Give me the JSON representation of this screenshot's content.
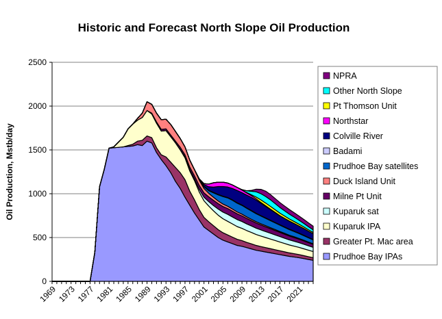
{
  "chart_data": {
    "type": "area",
    "stacked": true,
    "title": "Historic and Forecast North Slope Oil Production",
    "xlabel": "",
    "ylabel": "Oil Production, Mstb/day",
    "ylim": [
      0,
      2500
    ],
    "yticks": [
      "0",
      "500",
      "1000",
      "1500",
      "2000",
      "2500"
    ],
    "xlim": [
      1969,
      2024
    ],
    "xticks": [
      "1969",
      "1973",
      "1977",
      "1981",
      "1985",
      "1989",
      "1993",
      "1997",
      "2001",
      "2005",
      "2009",
      "2013",
      "2017",
      "2021"
    ],
    "grid": true,
    "legend_position": "right",
    "x": [
      1969,
      1970,
      1971,
      1972,
      1973,
      1974,
      1975,
      1976,
      1977,
      1978,
      1979,
      1980,
      1981,
      1982,
      1983,
      1984,
      1985,
      1986,
      1987,
      1988,
      1989,
      1990,
      1991,
      1992,
      1993,
      1994,
      1995,
      1996,
      1997,
      1998,
      1999,
      2000,
      2001,
      2002,
      2003,
      2004,
      2005,
      2006,
      2007,
      2008,
      2009,
      2010,
      2011,
      2012,
      2013,
      2014,
      2015,
      2016,
      2017,
      2018,
      2019,
      2020,
      2021,
      2022,
      2023,
      2024
    ],
    "series": [
      {
        "name": "Prudhoe Bay IPAs",
        "color": "#9999FF",
        "values": [
          0,
          0,
          0,
          0,
          0,
          0,
          0,
          0,
          0,
          330,
          1080,
          1280,
          1520,
          1525,
          1530,
          1535,
          1540,
          1545,
          1560,
          1550,
          1600,
          1580,
          1470,
          1390,
          1320,
          1240,
          1140,
          1060,
          960,
          870,
          780,
          700,
          620,
          580,
          540,
          500,
          470,
          450,
          430,
          410,
          400,
          385,
          370,
          355,
          345,
          335,
          325,
          315,
          305,
          295,
          285,
          278,
          270,
          260,
          250,
          240
        ]
      },
      {
        "name": "Greater Pt. Mac area",
        "color": "#993366",
        "values": [
          0,
          0,
          0,
          0,
          0,
          0,
          0,
          0,
          0,
          0,
          0,
          0,
          0,
          0,
          0,
          0,
          10,
          20,
          40,
          60,
          60,
          60,
          55,
          55,
          100,
          120,
          160,
          180,
          200,
          160,
          150,
          120,
          110,
          100,
          95,
          90,
          85,
          80,
          75,
          70,
          65,
          60,
          58,
          55,
          52,
          50,
          48,
          46,
          44,
          42,
          40,
          38,
          36,
          34,
          32,
          30
        ]
      },
      {
        "name": "Kuparuk IPA",
        "color": "#FFFFCC",
        "values": [
          0,
          0,
          0,
          0,
          0,
          0,
          0,
          0,
          0,
          0,
          0,
          0,
          0,
          10,
          60,
          110,
          190,
          230,
          240,
          260,
          290,
          270,
          280,
          270,
          300,
          290,
          280,
          260,
          250,
          230,
          220,
          200,
          190,
          180,
          170,
          165,
          160,
          155,
          150,
          145,
          140,
          135,
          130,
          125,
          120,
          115,
          110,
          105,
          100,
          95,
          90,
          86,
          82,
          78,
          74,
          70
        ]
      },
      {
        "name": "Kuparuk sat",
        "color": "#CCFFFF",
        "values": [
          0,
          0,
          0,
          0,
          0,
          0,
          0,
          0,
          0,
          0,
          0,
          0,
          0,
          0,
          0,
          0,
          0,
          0,
          0,
          0,
          0,
          0,
          0,
          0,
          0,
          0,
          0,
          5,
          10,
          15,
          20,
          30,
          40,
          50,
          60,
          70,
          75,
          80,
          80,
          80,
          78,
          76,
          74,
          72,
          70,
          68,
          66,
          64,
          62,
          60,
          58,
          56,
          54,
          52,
          50,
          48
        ]
      },
      {
        "name": "Milne Pt Unit",
        "color": "#660066",
        "values": [
          0,
          0,
          0,
          0,
          0,
          0,
          0,
          0,
          0,
          0,
          0,
          0,
          0,
          0,
          0,
          0,
          0,
          0,
          0,
          0,
          0,
          10,
          15,
          20,
          20,
          20,
          20,
          25,
          25,
          30,
          35,
          45,
          50,
          55,
          60,
          62,
          64,
          66,
          66,
          65,
          64,
          62,
          60,
          58,
          56,
          54,
          52,
          50,
          48,
          46,
          44,
          42,
          40,
          38,
          36,
          34
        ]
      },
      {
        "name": "Duck Island Unit",
        "color": "#FF8080",
        "values": [
          0,
          0,
          0,
          0,
          0,
          0,
          0,
          0,
          0,
          0,
          0,
          0,
          0,
          0,
          0,
          0,
          0,
          0,
          20,
          50,
          100,
          100,
          100,
          110,
          110,
          120,
          110,
          100,
          90,
          80,
          70,
          60,
          50,
          40,
          35,
          30,
          28,
          26,
          24,
          22,
          20,
          18,
          16,
          15,
          14,
          13,
          12,
          11,
          10,
          10,
          9,
          9,
          8,
          8,
          7,
          7
        ]
      },
      {
        "name": "Prudhoe Bay satellites",
        "color": "#0066CC",
        "values": [
          0,
          0,
          0,
          0,
          0,
          0,
          0,
          0,
          0,
          0,
          0,
          0,
          0,
          0,
          0,
          0,
          0,
          0,
          0,
          0,
          0,
          0,
          0,
          0,
          0,
          0,
          0,
          0,
          0,
          0,
          0,
          10,
          20,
          30,
          50,
          70,
          85,
          95,
          100,
          100,
          100,
          98,
          95,
          92,
          88,
          84,
          80,
          76,
          72,
          68,
          64,
          60,
          56,
          52,
          48,
          44
        ]
      },
      {
        "name": "Badami",
        "color": "#CCCCFF",
        "values": [
          0,
          0,
          0,
          0,
          0,
          0,
          0,
          0,
          0,
          0,
          0,
          0,
          0,
          0,
          0,
          0,
          0,
          0,
          0,
          0,
          0,
          0,
          0,
          0,
          0,
          0,
          0,
          0,
          0,
          0,
          0,
          5,
          5,
          5,
          5,
          5,
          5,
          5,
          5,
          5,
          5,
          5,
          5,
          5,
          5,
          5,
          5,
          5,
          5,
          5,
          5,
          5,
          5,
          5,
          5,
          5
        ]
      },
      {
        "name": "Colville River",
        "color": "#000080",
        "values": [
          0,
          0,
          0,
          0,
          0,
          0,
          0,
          0,
          0,
          0,
          0,
          0,
          0,
          0,
          0,
          0,
          0,
          0,
          0,
          0,
          0,
          0,
          0,
          0,
          0,
          0,
          0,
          0,
          0,
          0,
          0,
          0,
          20,
          40,
          60,
          90,
          110,
          120,
          130,
          140,
          140,
          145,
          150,
          150,
          140,
          130,
          120,
          110,
          100,
          95,
          90,
          85,
          80,
          75,
          70,
          65
        ]
      },
      {
        "name": "Northstar",
        "color": "#FF00FF",
        "values": [
          0,
          0,
          0,
          0,
          0,
          0,
          0,
          0,
          0,
          0,
          0,
          0,
          0,
          0,
          0,
          0,
          0,
          0,
          0,
          0,
          0,
          0,
          0,
          0,
          0,
          0,
          0,
          0,
          0,
          0,
          0,
          0,
          10,
          30,
          50,
          50,
          50,
          45,
          40,
          35,
          30,
          25,
          20,
          15,
          10,
          8,
          6,
          5,
          4,
          3,
          3,
          2,
          2,
          2,
          1,
          1
        ]
      },
      {
        "name": "Pt Thomson Unit",
        "color": "#FFFF00",
        "values": [
          0,
          0,
          0,
          0,
          0,
          0,
          0,
          0,
          0,
          0,
          0,
          0,
          0,
          0,
          0,
          0,
          0,
          0,
          0,
          0,
          0,
          0,
          0,
          0,
          0,
          0,
          0,
          0,
          0,
          0,
          0,
          0,
          0,
          0,
          0,
          0,
          0,
          0,
          0,
          0,
          0,
          5,
          10,
          20,
          30,
          32,
          32,
          30,
          28,
          26,
          24,
          22,
          20,
          18,
          16,
          14
        ]
      },
      {
        "name": "Other North Slope",
        "color": "#00FFFF",
        "values": [
          0,
          0,
          0,
          0,
          0,
          0,
          0,
          0,
          0,
          0,
          0,
          0,
          0,
          0,
          0,
          0,
          0,
          0,
          0,
          0,
          0,
          0,
          0,
          0,
          0,
          0,
          0,
          0,
          0,
          0,
          0,
          0,
          0,
          0,
          0,
          0,
          0,
          0,
          0,
          0,
          5,
          20,
          40,
          60,
          70,
          75,
          75,
          70,
          65,
          60,
          55,
          50,
          45,
          40,
          35,
          30
        ]
      },
      {
        "name": "NPRA",
        "color": "#800080",
        "values": [
          0,
          0,
          0,
          0,
          0,
          0,
          0,
          0,
          0,
          0,
          0,
          0,
          0,
          0,
          0,
          0,
          0,
          0,
          0,
          0,
          0,
          0,
          0,
          0,
          0,
          0,
          0,
          0,
          0,
          0,
          0,
          0,
          0,
          0,
          0,
          0,
          0,
          0,
          0,
          0,
          0,
          0,
          10,
          30,
          50,
          60,
          60,
          58,
          56,
          54,
          52,
          50,
          48,
          46,
          44,
          42
        ]
      }
    ]
  }
}
